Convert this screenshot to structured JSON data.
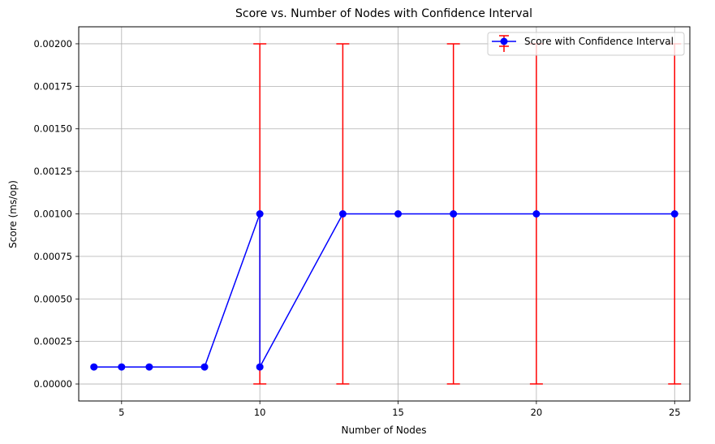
{
  "chart_data": {
    "type": "line",
    "title": "Score vs. Number of Nodes with Confidence Interval",
    "xlabel": "Number of Nodes",
    "ylabel": "Score (ms/op)",
    "xlim": [
      3.45,
      25.55
    ],
    "ylim": [
      -0.0001,
      0.0021
    ],
    "xticks": [
      5,
      10,
      15,
      20,
      25
    ],
    "xtick_labels": [
      "5",
      "10",
      "15",
      "20",
      "25"
    ],
    "yticks": [
      0,
      0.00025,
      0.0005,
      0.00075,
      0.001,
      0.00125,
      0.0015,
      0.00175,
      0.002
    ],
    "ytick_labels": [
      "0.00000",
      "0.00025",
      "0.00050",
      "0.00075",
      "0.00100",
      "0.00125",
      "0.00150",
      "0.00175",
      "0.00200"
    ],
    "grid": true,
    "legend_position": "top-right",
    "series": [
      {
        "name": "Score with Confidence Interval",
        "color": "#0000ff",
        "error_color": "#ff0000",
        "x": [
          4,
          5,
          6,
          8,
          10,
          10,
          13,
          15,
          17,
          20,
          25
        ],
        "y": [
          0.0001,
          0.0001,
          0.0001,
          0.0001,
          0.001,
          0.0001,
          0.001,
          0.001,
          0.001,
          0.001,
          0.001
        ],
        "error_low": [
          null,
          null,
          null,
          null,
          0,
          null,
          0,
          null,
          0,
          0,
          0
        ],
        "error_high": [
          null,
          null,
          null,
          null,
          0.002,
          null,
          0.002,
          null,
          0.002,
          0.002,
          0.002
        ]
      }
    ]
  }
}
